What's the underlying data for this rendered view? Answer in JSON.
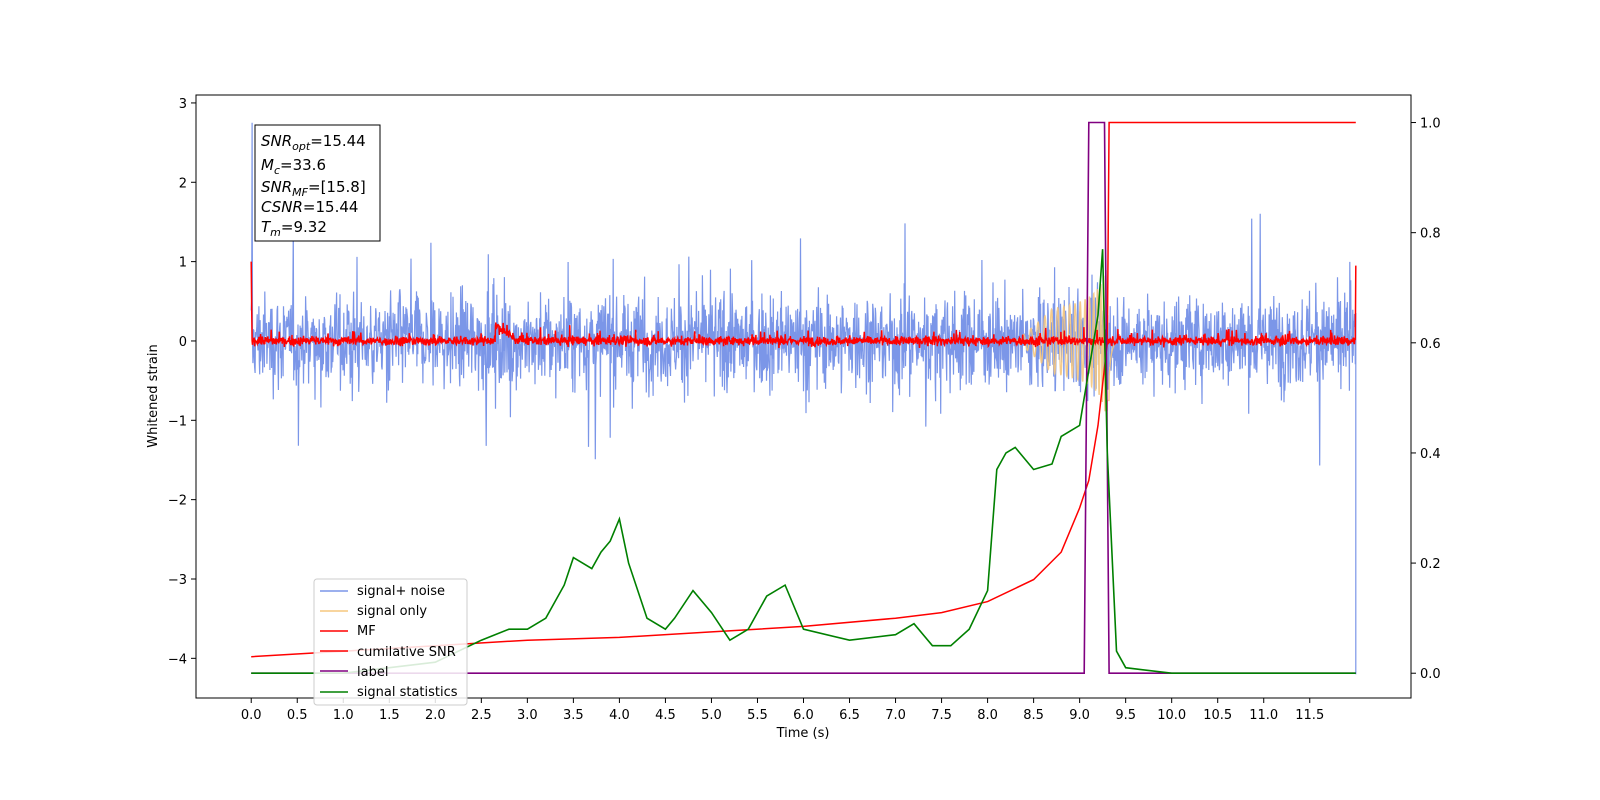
{
  "chart_data": {
    "type": "line",
    "xlabel": "Time (s)",
    "ylabel_left": "Whitened strain",
    "x_ticks": [
      "0.0",
      "0.5",
      "1.0",
      "1.5",
      "2.0",
      "2.5",
      "3.0",
      "3.5",
      "4.0",
      "4.5",
      "5.0",
      "5.5",
      "6.0",
      "6.5",
      "7.0",
      "7.5",
      "8.0",
      "8.5",
      "9.0",
      "9.5",
      "10.0",
      "10.5",
      "11.0",
      "11.5"
    ],
    "y_left_ticks": [
      "3",
      "2",
      "1",
      "0",
      "−1",
      "−2",
      "−3",
      "−4"
    ],
    "y_right_ticks": [
      "1.0",
      "0.8",
      "0.6",
      "0.4",
      "0.2",
      "0.0"
    ],
    "xlim": [
      -0.6,
      12.6
    ],
    "ylim_left": [
      -4.5,
      3.1
    ],
    "ylim_right": [
      -0.045,
      1.05
    ],
    "grid": false,
    "legend_position": "lower-left",
    "annotation": {
      "snr_opt": {
        "label": "SNR",
        "sub": "opt",
        "value": "=15.44"
      },
      "mc": {
        "label": "M",
        "sub": "c",
        "value": "=33.6"
      },
      "snr_mf": {
        "label": "SNR",
        "sub": "MF",
        "value": "=[15.8]"
      },
      "csnr": {
        "label": "CSNR",
        "sub": "",
        "value": "=15.44"
      },
      "tm": {
        "label": "T",
        "sub": "m",
        "value": "=9.32"
      }
    },
    "series": [
      {
        "name": "signal+ noise",
        "color": "#7b96e8",
        "axis": "left",
        "description_range": [
          -1.5,
          1.5
        ]
      },
      {
        "name": "signal only",
        "color": "#f5c77e",
        "axis": "left"
      },
      {
        "name": "MF",
        "color": "#ff0000",
        "axis": "left"
      },
      {
        "name": "cumilative SNR",
        "color": "#ff0000",
        "axis": "right",
        "x": [
          0,
          1,
          2,
          3,
          4,
          5,
          6,
          7,
          7.5,
          8,
          8.5,
          8.8,
          9.0,
          9.1,
          9.2,
          9.3,
          9.32,
          12.0
        ],
        "values": [
          0.03,
          0.04,
          0.05,
          0.06,
          0.065,
          0.075,
          0.085,
          0.1,
          0.11,
          0.13,
          0.17,
          0.22,
          0.3,
          0.35,
          0.45,
          0.6,
          1.0,
          1.0
        ]
      },
      {
        "name": "label",
        "color": "#800080",
        "axis": "right",
        "x": [
          0,
          9.05,
          9.1,
          9.27,
          9.32,
          9.38,
          12.0
        ],
        "values": [
          0.0,
          0.0,
          1.0,
          1.0,
          0.0,
          0.0,
          0.0
        ]
      },
      {
        "name": "signal statistics",
        "color": "#008000",
        "axis": "right",
        "x": [
          0,
          0.5,
          1.0,
          1.5,
          2.0,
          2.5,
          2.8,
          3.0,
          3.2,
          3.4,
          3.5,
          3.6,
          3.7,
          3.8,
          3.9,
          4.0,
          4.1,
          4.3,
          4.5,
          4.6,
          4.8,
          5.0,
          5.2,
          5.4,
          5.6,
          5.8,
          6.0,
          6.5,
          7.0,
          7.2,
          7.4,
          7.6,
          7.8,
          8.0,
          8.1,
          8.2,
          8.3,
          8.5,
          8.7,
          8.8,
          9.0,
          9.1,
          9.2,
          9.25,
          9.3,
          9.4,
          9.5,
          10.0,
          11.0,
          12.0
        ],
        "values": [
          0.0,
          0.0,
          0.0,
          0.01,
          0.02,
          0.06,
          0.08,
          0.08,
          0.1,
          0.16,
          0.21,
          0.2,
          0.19,
          0.22,
          0.24,
          0.28,
          0.2,
          0.1,
          0.08,
          0.1,
          0.15,
          0.11,
          0.06,
          0.08,
          0.14,
          0.16,
          0.08,
          0.06,
          0.07,
          0.09,
          0.05,
          0.05,
          0.08,
          0.15,
          0.37,
          0.4,
          0.41,
          0.37,
          0.38,
          0.43,
          0.45,
          0.55,
          0.65,
          0.77,
          0.4,
          0.04,
          0.01,
          0.0,
          0.0,
          0.0
        ]
      }
    ]
  }
}
